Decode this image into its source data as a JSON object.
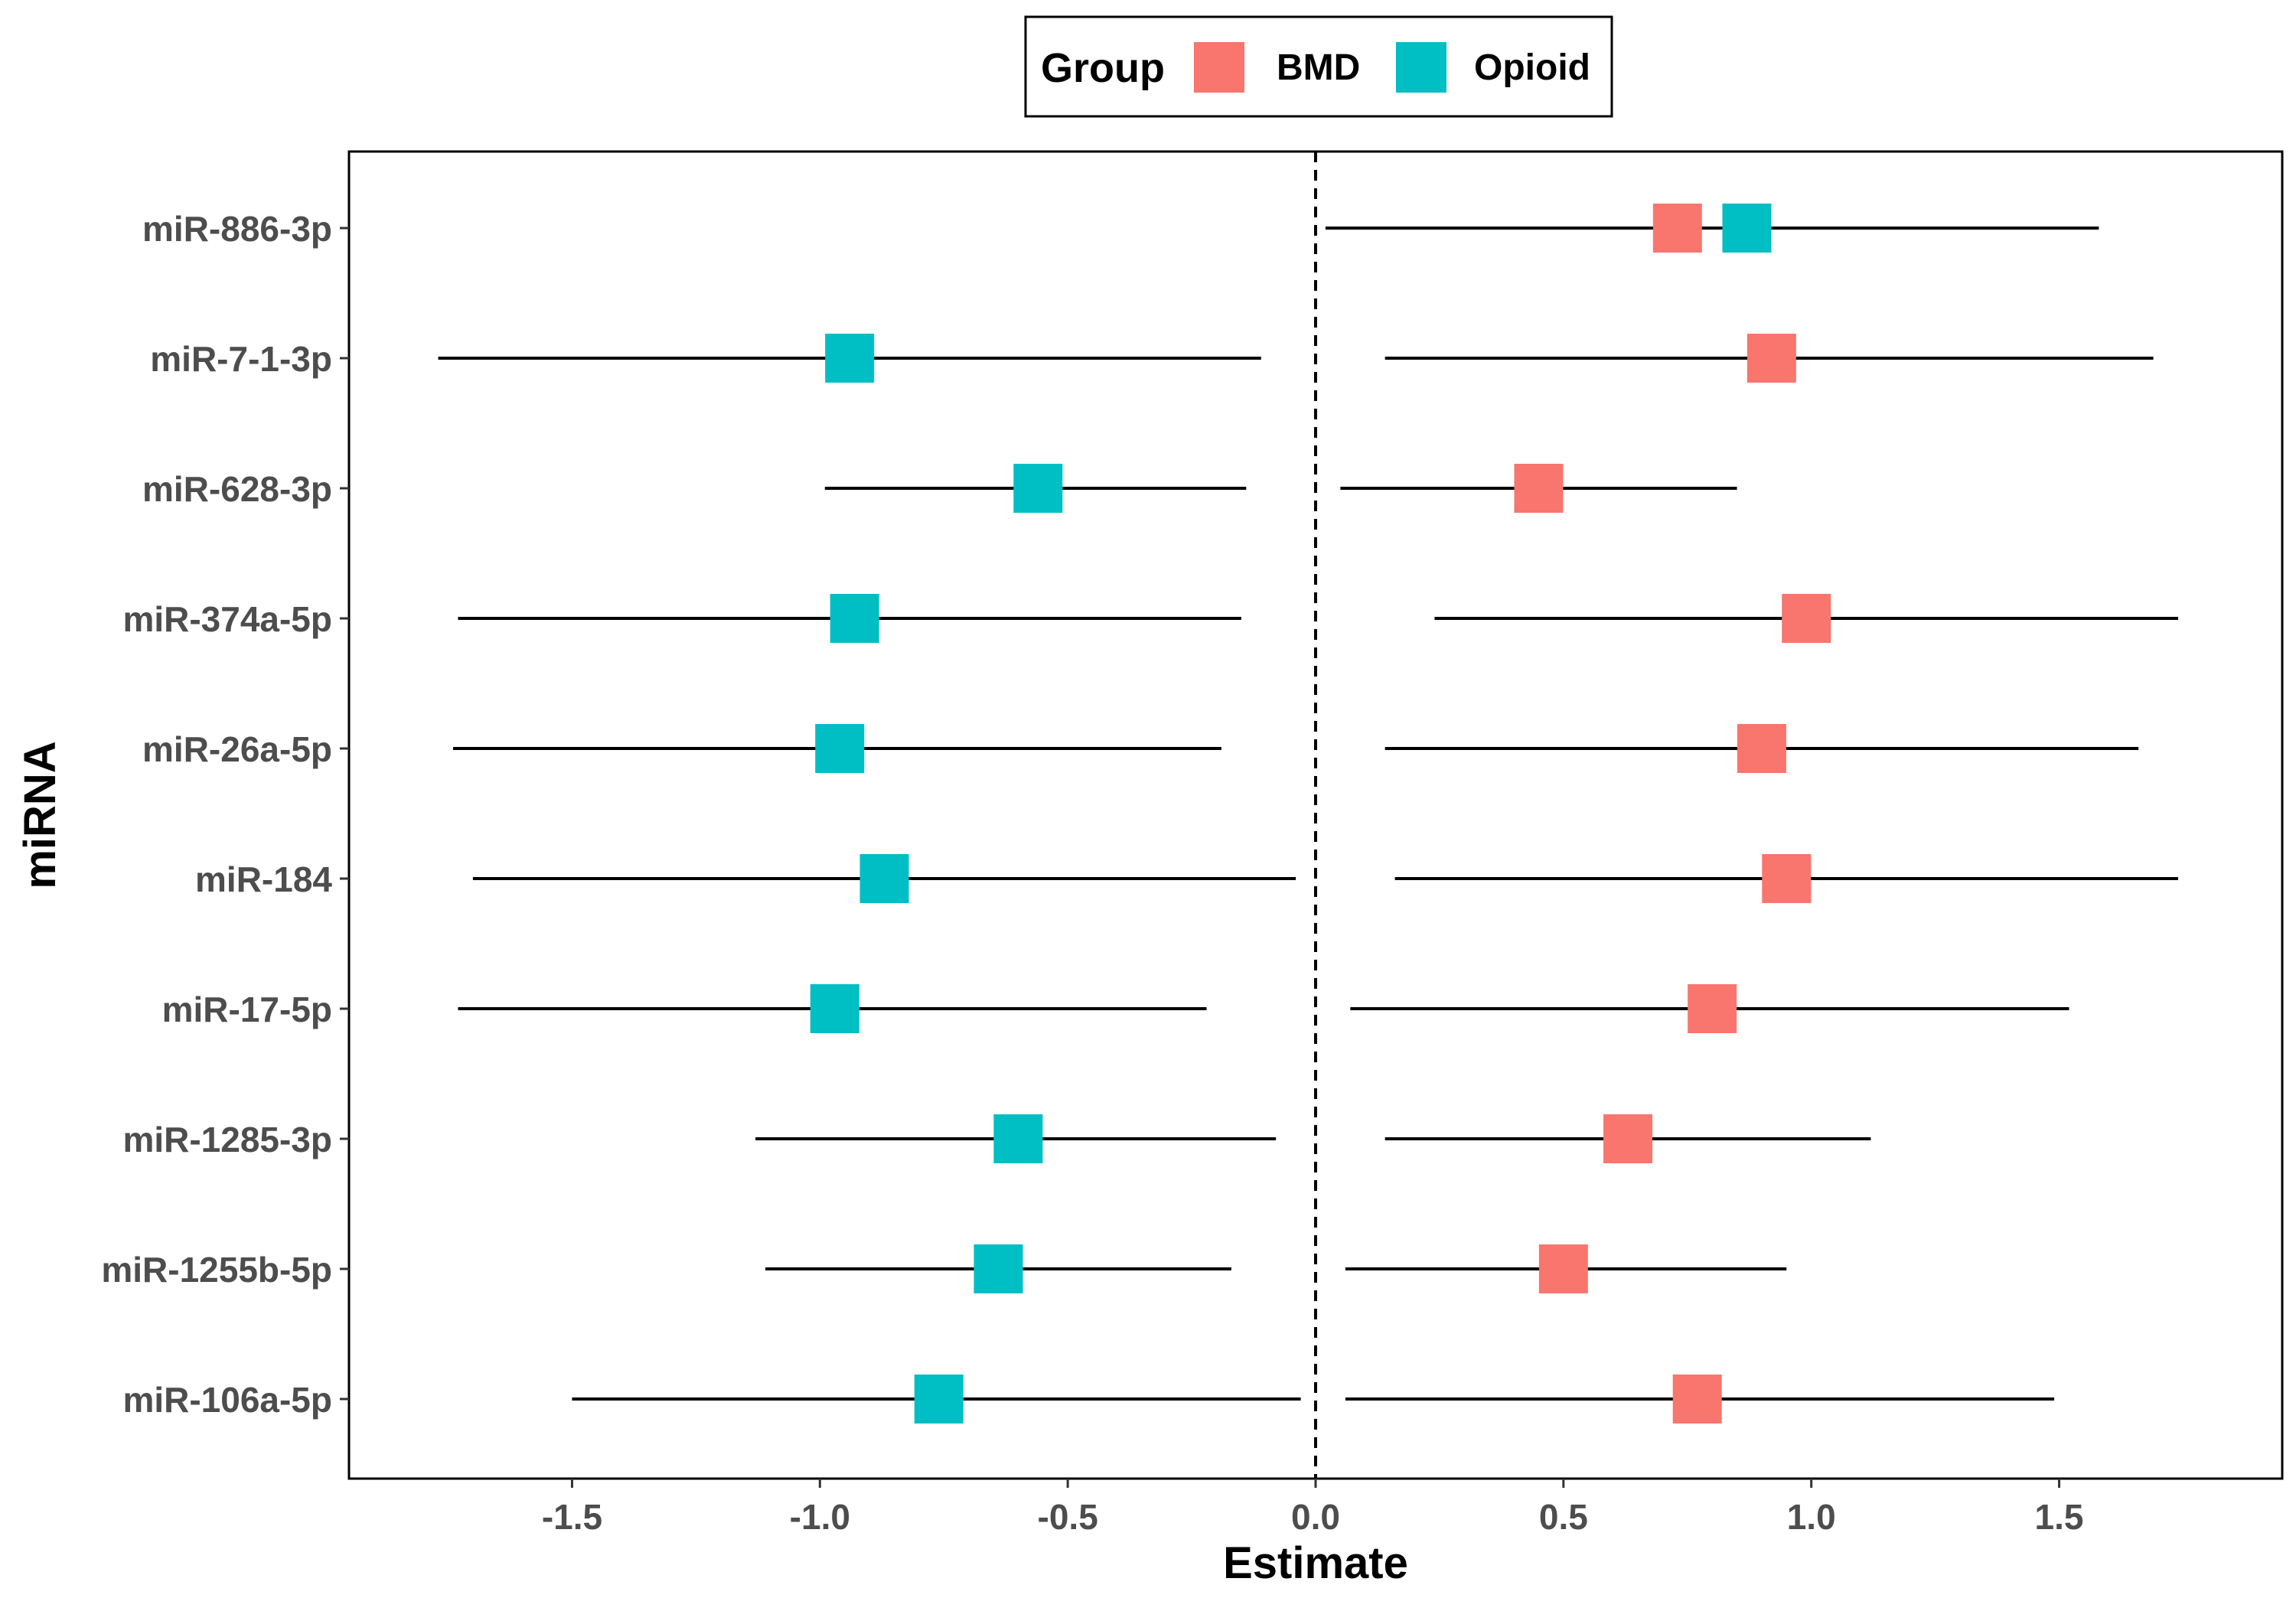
{
  "chart_data": {
    "type": "forest",
    "xlabel": "Estimate",
    "ylabel": "miRNA",
    "xlim": [
      -1.95,
      1.95
    ],
    "xticks": [
      "-1.5",
      "-1.0",
      "-0.5",
      "0.0",
      "0.5",
      "1.0",
      "1.5"
    ],
    "xtick_values": [
      -1.5,
      -1.0,
      -0.5,
      0.0,
      0.5,
      1.0,
      1.5
    ],
    "reference_line": 0.0,
    "legend": {
      "title": "Group",
      "position": "top",
      "entries": [
        {
          "label": "BMD",
          "color": "#F8766D"
        },
        {
          "label": "Opioid",
          "color": "#00BFC4"
        }
      ]
    },
    "categories": [
      "miR-886-3p",
      "miR-7-1-3p",
      "miR-628-3p",
      "miR-374a-5p",
      "miR-26a-5p",
      "miR-184",
      "miR-17-5p",
      "miR-1285-3p",
      "miR-1255b-5p",
      "miR-106a-5p"
    ],
    "series": [
      {
        "name": "BMD",
        "color": "#F8766D",
        "estimates": [
          0.73,
          0.92,
          0.45,
          0.99,
          0.9,
          0.95,
          0.8,
          0.63,
          0.5,
          0.77
        ],
        "lower": [
          0.02,
          0.14,
          0.05,
          0.24,
          0.14,
          0.16,
          0.07,
          0.14,
          0.06,
          0.06
        ],
        "upper": [
          1.58,
          1.69,
          0.85,
          1.74,
          1.66,
          1.74,
          1.52,
          1.12,
          0.95,
          1.49
        ]
      },
      {
        "name": "Opioid",
        "color": "#00BFC4",
        "estimates": [
          0.87,
          -0.94,
          -0.56,
          -0.93,
          -0.96,
          -0.87,
          -0.97,
          -0.6,
          -0.64,
          -0.76
        ],
        "lower": [
          0.02,
          -1.77,
          -0.99,
          -1.73,
          -1.74,
          -1.7,
          -1.73,
          -1.13,
          -1.11,
          -1.5
        ],
        "upper": [
          1.43,
          -0.11,
          -0.14,
          -0.15,
          -0.19,
          -0.04,
          -0.22,
          -0.08,
          -0.17,
          -0.03
        ]
      }
    ]
  }
}
